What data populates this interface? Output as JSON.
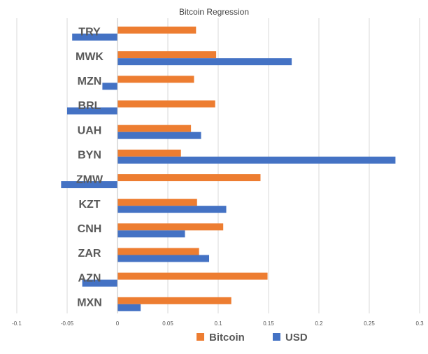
{
  "chart_data": {
    "type": "bar",
    "orientation": "horizontal",
    "title": "Bitcoin Regression",
    "xlabel": "",
    "ylabel": "",
    "xlim": [
      -0.1,
      0.3
    ],
    "x_ticks": [
      -0.1,
      -0.05,
      0,
      0.05,
      0.1,
      0.15,
      0.2,
      0.25,
      0.3
    ],
    "x_tick_labels": [
      "-0.1",
      "-0.05",
      "0",
      "0.05",
      "0.1",
      "0.15",
      "0.2",
      "0.25",
      "0.3"
    ],
    "grid": "vertical",
    "legend_position": "bottom",
    "categories": [
      "TRY",
      "MWK",
      "MZN",
      "BRL",
      "UAH",
      "BYN",
      "ZMW",
      "KZT",
      "CNH",
      "ZAR",
      "AZN",
      "MXN"
    ],
    "series": [
      {
        "name": "Bitcoin",
        "color": "#ED7D31",
        "values": [
          0.078,
          0.098,
          0.076,
          0.097,
          0.073,
          0.063,
          0.142,
          0.079,
          0.105,
          0.081,
          0.149,
          0.113
        ]
      },
      {
        "name": "USD",
        "color": "#4472C4",
        "values": [
          -0.045,
          0.173,
          -0.015,
          -0.05,
          0.083,
          0.276,
          -0.056,
          0.108,
          0.067,
          0.091,
          -0.035,
          0.023
        ]
      }
    ]
  }
}
